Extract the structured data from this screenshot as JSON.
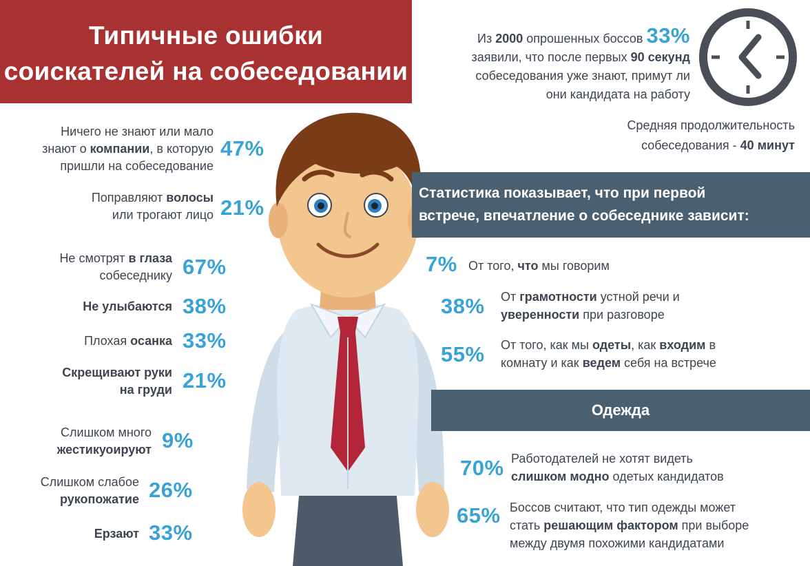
{
  "title": {
    "line1": "Типичные ошибки",
    "line2": "соискателей на собеседовании"
  },
  "mistakes": [
    {
      "p1": "Ничего не знают или мало",
      "p2": "знают о ",
      "p3": "компании",
      "p4": ", в которую",
      "p5": "пришли на собеседование",
      "pct": "47%"
    },
    {
      "p1": "Поправляют ",
      "p2": "волосы",
      "p3": "или трогают лицо",
      "pct": "21%"
    },
    {
      "p1": "Не смотрят ",
      "p2": "в глаза",
      "p3": "собеседнику",
      "pct": "67%"
    },
    {
      "p1": "Не улыбаются",
      "pct": "38%"
    },
    {
      "p1": "Плохая ",
      "p2": "осанка",
      "pct": "33%"
    },
    {
      "p1": "Скрещивают руки",
      "p2": "на груди",
      "pct": "21%"
    },
    {
      "p1": "Слишком много",
      "p2": "жестикуоируют",
      "pct": "9%"
    },
    {
      "p1": "Слишком слабое",
      "p2": "рукопожатие",
      "pct": "26%"
    },
    {
      "p1": "Ерзают",
      "pct": "33%"
    }
  ],
  "bosses": {
    "t1": "Из ",
    "n1": "2000",
    "t2": " опрошенных боссов",
    "pct": "33%",
    "t3": "заявили, что после первых ",
    "n2": "90 секунд",
    "t4": "собеседования уже знают, примут ли",
    "t5": "они кандидата на работу"
  },
  "duration": {
    "line1": "Средняя продолжительность",
    "line2a": "собеседования - ",
    "line2b": "40 минут"
  },
  "stats_header": {
    "line1": "Статистика показывает, что при первой",
    "line2": "встрече, впечатление о собеседнике зависит:"
  },
  "stats": [
    {
      "pct": "7%",
      "a": "От того, ",
      "b": "что",
      "c": " мы говорим"
    },
    {
      "pct": "38%",
      "a": "От ",
      "b": "грамотности",
      "c": " устной речи и",
      "d": "уверенности",
      "e": " при разговоре"
    },
    {
      "pct": "55%",
      "a": "От того, как мы ",
      "b": "одеты",
      "c": ", как  ",
      "d": "входим",
      "e": " в",
      "f": "комнату и как ",
      "g": "ведем",
      "h": " себя на встрече"
    }
  ],
  "clothes_header": "Одежда",
  "clothes": [
    {
      "pct": "70%",
      "a": "Работодателей не хотят видеть",
      "b": "слишком модно",
      "c": " одетых кандидатов"
    },
    {
      "pct": "65%",
      "a": "Боссов считают, что тип одежды может",
      "b": "стать ",
      "c": "решающим фактором",
      "d": " при выборе",
      "e": "между двумя похожими кандидатами"
    }
  ],
  "colors": {
    "title_bg": "#a83232",
    "accent": "#3aa3d6",
    "bar_bg": "#4a5f70",
    "text": "#3d4550",
    "tie": "#b3263a",
    "shirt": "#dfe9f2",
    "hair": "#7a3b17",
    "skin": "#f3c58f"
  },
  "icons": {
    "clock": "clock-icon",
    "character": "man-in-shirt-and-tie-illustration"
  }
}
